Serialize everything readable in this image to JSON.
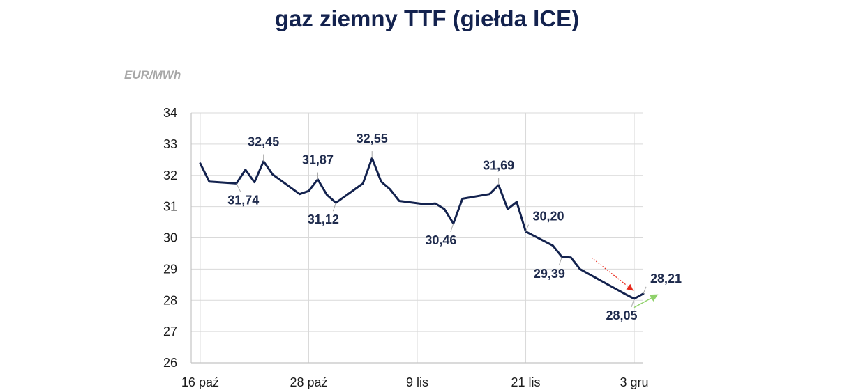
{
  "chart_data": {
    "type": "line",
    "title": "gaz ziemny TTF (giełda ICE)",
    "ylabel": "EUR/MWh",
    "ylim": [
      26,
      34
    ],
    "yticks": [
      26,
      27,
      28,
      29,
      30,
      31,
      32,
      33,
      34
    ],
    "xlim": [
      "2023-10-15",
      "2023-12-04"
    ],
    "xticks": [
      {
        "date": "2023-10-16",
        "label": "16 paź"
      },
      {
        "date": "2023-10-28",
        "label": "28 paź"
      },
      {
        "date": "2023-11-09",
        "label": "9 lis"
      },
      {
        "date": "2023-11-21",
        "label": "21 lis"
      },
      {
        "date": "2023-12-03",
        "label": "3 gru"
      }
    ],
    "grid": true,
    "line_color": "#13224e",
    "series": [
      {
        "points": [
          {
            "x": "2023-10-16",
            "y": 32.38
          },
          {
            "x": "2023-10-17",
            "y": 31.8
          },
          {
            "x": "2023-10-20",
            "y": 31.74
          },
          {
            "x": "2023-10-21",
            "y": 32.18
          },
          {
            "x": "2023-10-22",
            "y": 31.78
          },
          {
            "x": "2023-10-23",
            "y": 32.45
          },
          {
            "x": "2023-10-24",
            "y": 32.03
          },
          {
            "x": "2023-10-27",
            "y": 31.4
          },
          {
            "x": "2023-10-28",
            "y": 31.5
          },
          {
            "x": "2023-10-29",
            "y": 31.87
          },
          {
            "x": "2023-10-30",
            "y": 31.38
          },
          {
            "x": "2023-10-31",
            "y": 31.12
          },
          {
            "x": "2023-11-03",
            "y": 31.74
          },
          {
            "x": "2023-11-04",
            "y": 32.55
          },
          {
            "x": "2023-11-05",
            "y": 31.8
          },
          {
            "x": "2023-11-06",
            "y": 31.55
          },
          {
            "x": "2023-11-07",
            "y": 31.18
          },
          {
            "x": "2023-11-10",
            "y": 31.07
          },
          {
            "x": "2023-11-11",
            "y": 31.1
          },
          {
            "x": "2023-11-12",
            "y": 30.92
          },
          {
            "x": "2023-11-13",
            "y": 30.46
          },
          {
            "x": "2023-11-14",
            "y": 31.25
          },
          {
            "x": "2023-11-17",
            "y": 31.4
          },
          {
            "x": "2023-11-18",
            "y": 31.69
          },
          {
            "x": "2023-11-19",
            "y": 30.92
          },
          {
            "x": "2023-11-20",
            "y": 31.15
          },
          {
            "x": "2023-11-21",
            "y": 30.2
          },
          {
            "x": "2023-11-24",
            "y": 29.75
          },
          {
            "x": "2023-11-25",
            "y": 29.39
          },
          {
            "x": "2023-11-26",
            "y": 29.37
          },
          {
            "x": "2023-11-27",
            "y": 29.0
          },
          {
            "x": "2023-12-02",
            "y": 28.2
          },
          {
            "x": "2023-12-03",
            "y": 28.05
          },
          {
            "x": "2023-12-04",
            "y": 28.21
          }
        ]
      }
    ],
    "annotations": [
      {
        "x": "2023-10-20",
        "y": 31.74,
        "text": "31,74",
        "position": "below-right"
      },
      {
        "x": "2023-10-23",
        "y": 32.45,
        "text": "32,45",
        "position": "above"
      },
      {
        "x": "2023-10-29",
        "y": 31.87,
        "text": "31,87",
        "position": "above"
      },
      {
        "x": "2023-10-31",
        "y": 31.12,
        "text": "31,12",
        "position": "below-left"
      },
      {
        "x": "2023-11-04",
        "y": 32.55,
        "text": "32,55",
        "position": "above"
      },
      {
        "x": "2023-11-13",
        "y": 30.46,
        "text": "30,46",
        "position": "below-left"
      },
      {
        "x": "2023-11-18",
        "y": 31.69,
        "text": "31,69",
        "position": "above"
      },
      {
        "x": "2023-11-21",
        "y": 30.2,
        "text": "30,20",
        "position": "above-right"
      },
      {
        "x": "2023-11-25",
        "y": 29.39,
        "text": "29,39",
        "position": "below-left"
      },
      {
        "x": "2023-12-03",
        "y": 28.05,
        "text": "28,05",
        "position": "below-left"
      },
      {
        "x": "2023-12-04",
        "y": 28.21,
        "text": "28,21",
        "position": "above-right"
      }
    ],
    "trend_arrows": [
      {
        "direction": "down",
        "color": "#e8291c"
      },
      {
        "direction": "up",
        "color": "#8fd16a"
      }
    ]
  }
}
